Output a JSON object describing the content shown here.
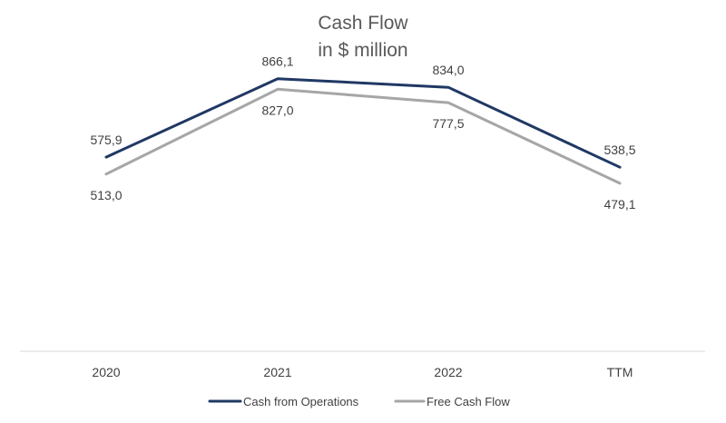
{
  "chart_data": {
    "type": "line",
    "title": "Cash Flow",
    "subtitle": "in $ million",
    "categories": [
      "2020",
      "2021",
      "2022",
      "TTM"
    ],
    "series": [
      {
        "name": "Cash from Operations",
        "color": "#203864",
        "values": [
          575.9,
          866.1,
          834.0,
          538.5
        ],
        "labels": [
          "575,9",
          "866,1",
          "834,0",
          "538,5"
        ]
      },
      {
        "name": "Free Cash Flow",
        "color": "#a6a6a6",
        "values": [
          513.0,
          827.0,
          777.5,
          479.1
        ],
        "labels": [
          "513,0",
          "827,0",
          "777,5",
          "479,1"
        ]
      }
    ],
    "xlabel": "",
    "ylabel": "",
    "gridlines": false,
    "legend": "bottom"
  }
}
